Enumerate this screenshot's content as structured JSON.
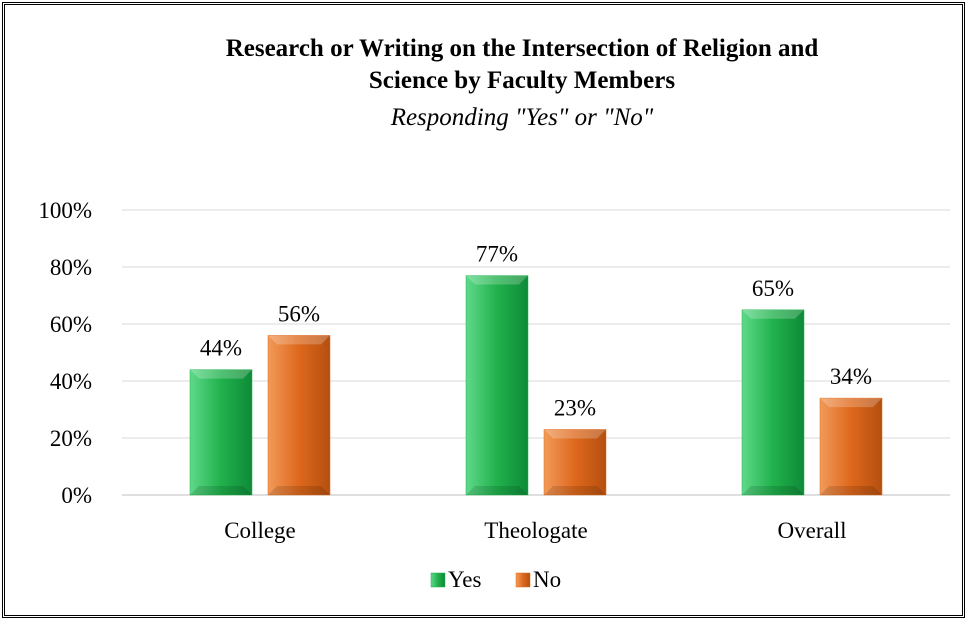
{
  "chart_data": {
    "type": "bar",
    "title_lines": [
      "Research or Writing on the Intersection of Religion and",
      "Science by Faculty Members"
    ],
    "subtitle": "Responding \"Yes\" or \"No\"",
    "categories": [
      "College",
      "Theologate",
      "Overall"
    ],
    "series": [
      {
        "name": "Yes",
        "values": [
          44,
          77,
          65
        ],
        "labels": [
          "44%",
          "77%",
          "65%"
        ],
        "color": "#22b14c"
      },
      {
        "name": "No",
        "values": [
          56,
          23,
          34
        ],
        "labels": [
          "56%",
          "23%",
          "34%"
        ],
        "color": "#e06a1e"
      }
    ],
    "ylim": [
      0,
      100
    ],
    "yticks": [
      {
        "value": 0,
        "label": "0%"
      },
      {
        "value": 20,
        "label": "20%"
      },
      {
        "value": 40,
        "label": "40%"
      },
      {
        "value": 60,
        "label": "60%"
      },
      {
        "value": 80,
        "label": "80%"
      },
      {
        "value": 100,
        "label": "100%"
      }
    ],
    "grid": true,
    "legend_position": "bottom",
    "gridline_color": "#d9d9d9"
  }
}
